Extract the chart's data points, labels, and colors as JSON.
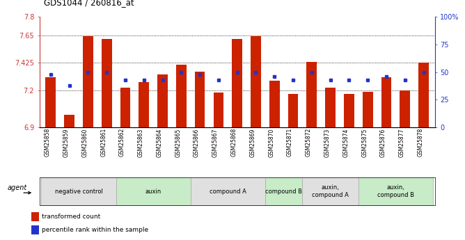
{
  "title": "GDS1044 / 260816_at",
  "samples": [
    "GSM25858",
    "GSM25859",
    "GSM25860",
    "GSM25861",
    "GSM25862",
    "GSM25863",
    "GSM25864",
    "GSM25865",
    "GSM25866",
    "GSM25867",
    "GSM25868",
    "GSM25869",
    "GSM25870",
    "GSM25871",
    "GSM25872",
    "GSM25873",
    "GSM25874",
    "GSM25875",
    "GSM25876",
    "GSM25877",
    "GSM25878"
  ],
  "red_values": [
    7.31,
    7.0,
    7.64,
    7.62,
    7.22,
    7.27,
    7.33,
    7.41,
    7.35,
    7.18,
    7.62,
    7.64,
    7.28,
    7.17,
    7.43,
    7.22,
    7.17,
    7.19,
    7.31,
    7.2,
    7.425
  ],
  "blue_percentiles": [
    48,
    38,
    50,
    50,
    43,
    43,
    43,
    50,
    48,
    43,
    50,
    50,
    46,
    43,
    50,
    43,
    43,
    43,
    46,
    43,
    50
  ],
  "y_min": 6.9,
  "y_max": 7.8,
  "y_ticks": [
    6.9,
    7.2,
    7.425,
    7.65,
    7.8
  ],
  "y_tick_labels": [
    "6.9",
    "7.2",
    "7.425",
    "7.65",
    "7.8"
  ],
  "right_y_ticks": [
    0,
    25,
    50,
    75,
    100
  ],
  "right_y_tick_labels": [
    "0",
    "25",
    "50",
    "75",
    "100%"
  ],
  "grid_lines": [
    7.2,
    7.425,
    7.65
  ],
  "groups": [
    {
      "label": "negative control",
      "start": 0,
      "end": 3,
      "color": "#e0e0e0"
    },
    {
      "label": "auxin",
      "start": 4,
      "end": 7,
      "color": "#c8ebc8"
    },
    {
      "label": "compound A",
      "start": 8,
      "end": 11,
      "color": "#e0e0e0"
    },
    {
      "label": "compound B",
      "start": 12,
      "end": 13,
      "color": "#c8ebc8"
    },
    {
      "label": "auxin,\ncompound A",
      "start": 14,
      "end": 16,
      "color": "#e0e0e0"
    },
    {
      "label": "auxin,\ncompound B",
      "start": 17,
      "end": 20,
      "color": "#c8ebc8"
    }
  ],
  "bar_color": "#cc2200",
  "dot_color": "#2233cc",
  "bar_width": 0.55,
  "base_value": 6.9,
  "legend_red": "transformed count",
  "legend_blue": "percentile rank within the sample",
  "agent_label": "agent"
}
